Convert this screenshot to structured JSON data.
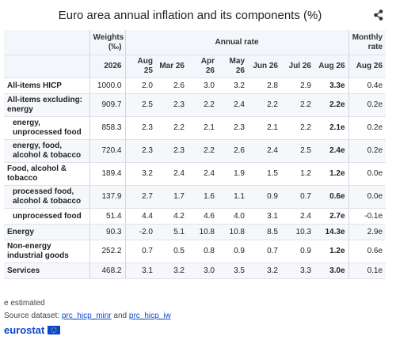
{
  "title": "Euro area annual inflation and its components (%)",
  "table": {
    "header": {
      "weights": "Weights (‰)",
      "annual": "Annual rate",
      "monthly": "Monthly rate",
      "subheads": [
        "2026",
        "Aug 25",
        "Mar 26",
        "Apr 26",
        "May 26",
        "Jun 26",
        "Jul 26",
        "Aug 26",
        "Aug 26"
      ]
    },
    "rows": [
      {
        "label": "All-items HICP",
        "indent": false,
        "cells": [
          "1000.0",
          "2.0",
          "2.6",
          "3.0",
          "3.2",
          "2.8",
          "2.9",
          "3.3e",
          "0.4e"
        ]
      },
      {
        "label": "All-items excluding: energy",
        "indent": false,
        "cells": [
          "909.7",
          "2.5",
          "2.3",
          "2.2",
          "2.4",
          "2.2",
          "2.2",
          "2.2e",
          "0.2e"
        ]
      },
      {
        "label": "energy, unprocessed food",
        "indent": true,
        "cells": [
          "858.3",
          "2.3",
          "2.2",
          "2.1",
          "2.3",
          "2.1",
          "2.2",
          "2.1e",
          "0.2e"
        ]
      },
      {
        "label": "energy, food, alcohol & tobacco",
        "indent": true,
        "cells": [
          "720.4",
          "2.3",
          "2.3",
          "2.2",
          "2.6",
          "2.4",
          "2.5",
          "2.4e",
          "0.2e"
        ]
      },
      {
        "label": "Food, alcohol & tobacco",
        "indent": false,
        "cells": [
          "189.4",
          "3.2",
          "2.4",
          "2.4",
          "1.9",
          "1.5",
          "1.2",
          "1.2e",
          "0.0e"
        ]
      },
      {
        "label": "processed food, alcohol & tobacco",
        "indent": true,
        "cells": [
          "137.9",
          "2.7",
          "1.7",
          "1.6",
          "1.1",
          "0.9",
          "0.7",
          "0.6e",
          "0.0e"
        ]
      },
      {
        "label": "unprocessed food",
        "indent": true,
        "cells": [
          "51.4",
          "4.4",
          "4.2",
          "4.6",
          "4.0",
          "3.1",
          "2.4",
          "2.7e",
          "-0.1e"
        ]
      },
      {
        "label": "Energy",
        "indent": false,
        "cells": [
          "90.3",
          "-2.0",
          "5.1",
          "10.8",
          "10.8",
          "8.5",
          "10.3",
          "14.3e",
          "2.9e"
        ]
      },
      {
        "label": "Non-energy industrial goods",
        "indent": false,
        "cells": [
          "252.2",
          "0.7",
          "0.5",
          "0.8",
          "0.9",
          "0.7",
          "0.9",
          "1.2e",
          "0.6e"
        ]
      },
      {
        "label": "Services",
        "indent": false,
        "cells": [
          "468.2",
          "3.1",
          "3.2",
          "3.0",
          "3.5",
          "3.2",
          "3.3",
          "3.0e",
          "0.1e"
        ]
      }
    ]
  },
  "footer": {
    "note": "e estimated",
    "source_prefix": "Source dataset:",
    "link1": "prc_hicp_minr",
    "joiner": "and",
    "link2": "prc_hicp_iw",
    "logo": "eurostat"
  }
}
